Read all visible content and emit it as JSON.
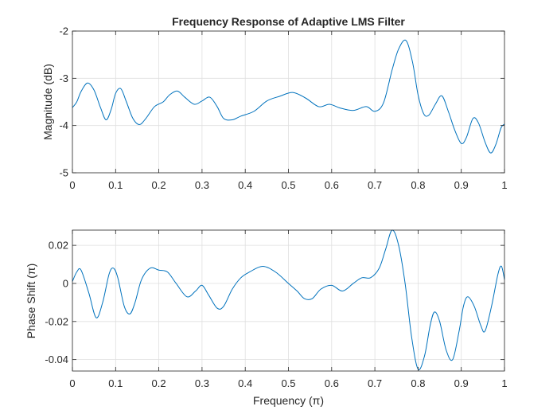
{
  "chart_data": [
    {
      "type": "line",
      "title": "Frequency Response of Adaptive LMS Filter",
      "xlabel": "",
      "ylabel": "Magnitude (dB)",
      "xlim": [
        0,
        1
      ],
      "ylim": [
        -5,
        -2
      ],
      "xticks": [
        "0",
        "0.1",
        "0.2",
        "0.3",
        "0.4",
        "0.5",
        "0.6",
        "0.7",
        "0.8",
        "0.9",
        "1"
      ],
      "yticks": [
        "-2",
        "-3",
        "-4",
        "-5"
      ],
      "grid": true,
      "line_color": "#0072bd",
      "series": [
        {
          "x": [
            0,
            0.01,
            0.02,
            0.035,
            0.05,
            0.065,
            0.078,
            0.09,
            0.1,
            0.112,
            0.125,
            0.14,
            0.155,
            0.17,
            0.19,
            0.21,
            0.225,
            0.243,
            0.26,
            0.282,
            0.3,
            0.318,
            0.335,
            0.35,
            0.37,
            0.39,
            0.42,
            0.45,
            0.48,
            0.51,
            0.54,
            0.57,
            0.595,
            0.62,
            0.65,
            0.68,
            0.7,
            0.72,
            0.74,
            0.755,
            0.772,
            0.787,
            0.8,
            0.813,
            0.825,
            0.84,
            0.855,
            0.87,
            0.885,
            0.9,
            0.912,
            0.927,
            0.94,
            0.955,
            0.968,
            0.98,
            0.992,
            1
          ],
          "values": [
            -3.62,
            -3.5,
            -3.28,
            -3.1,
            -3.25,
            -3.62,
            -3.88,
            -3.65,
            -3.32,
            -3.22,
            -3.5,
            -3.85,
            -3.98,
            -3.85,
            -3.6,
            -3.5,
            -3.35,
            -3.27,
            -3.4,
            -3.55,
            -3.48,
            -3.4,
            -3.6,
            -3.85,
            -3.88,
            -3.8,
            -3.7,
            -3.48,
            -3.38,
            -3.3,
            -3.42,
            -3.6,
            -3.55,
            -3.63,
            -3.68,
            -3.6,
            -3.7,
            -3.52,
            -2.82,
            -2.38,
            -2.2,
            -2.65,
            -3.35,
            -3.75,
            -3.78,
            -3.55,
            -3.37,
            -3.7,
            -4.1,
            -4.38,
            -4.25,
            -3.85,
            -3.95,
            -4.35,
            -4.58,
            -4.4,
            -4.05,
            -3.97
          ]
        }
      ]
    },
    {
      "type": "line",
      "title": "",
      "xlabel": "Frequency (π)",
      "ylabel": "Phase Shift (π)",
      "xlim": [
        0,
        1
      ],
      "ylim": [
        -0.046,
        0.028
      ],
      "xticks": [
        "0",
        "0.1",
        "0.2",
        "0.3",
        "0.4",
        "0.5",
        "0.6",
        "0.7",
        "0.8",
        "0.9",
        "1"
      ],
      "yticks": [
        "0.02",
        "0",
        "-0.02",
        "-0.04"
      ],
      "grid": true,
      "line_color": "#0072bd",
      "series": [
        {
          "x": [
            0,
            0.01,
            0.02,
            0.038,
            0.055,
            0.07,
            0.085,
            0.095,
            0.105,
            0.12,
            0.133,
            0.145,
            0.16,
            0.18,
            0.2,
            0.22,
            0.24,
            0.265,
            0.285,
            0.3,
            0.315,
            0.335,
            0.35,
            0.37,
            0.39,
            0.41,
            0.44,
            0.47,
            0.5,
            0.52,
            0.537,
            0.555,
            0.575,
            0.6,
            0.625,
            0.65,
            0.67,
            0.69,
            0.71,
            0.725,
            0.74,
            0.755,
            0.77,
            0.785,
            0.8,
            0.815,
            0.828,
            0.838,
            0.85,
            0.865,
            0.88,
            0.895,
            0.905,
            0.915,
            0.93,
            0.945,
            0.955,
            0.97,
            0.985,
            0.993,
            1
          ],
          "values": [
            0.001,
            0.006,
            0.007,
            -0.005,
            -0.018,
            -0.01,
            0.005,
            0.008,
            0.003,
            -0.012,
            -0.016,
            -0.01,
            0.002,
            0.008,
            0.007,
            0.006,
            0.0,
            -0.007,
            -0.004,
            -0.001,
            -0.006,
            -0.013,
            -0.012,
            -0.003,
            0.003,
            0.006,
            0.009,
            0.006,
            0.0,
            -0.004,
            -0.008,
            -0.008,
            -0.003,
            -0.001,
            -0.004,
            0.0,
            0.003,
            0.003,
            0.008,
            0.018,
            0.028,
            0.02,
            0.0,
            -0.028,
            -0.045,
            -0.038,
            -0.022,
            -0.015,
            -0.02,
            -0.035,
            -0.04,
            -0.025,
            -0.012,
            -0.007,
            -0.012,
            -0.022,
            -0.025,
            -0.012,
            0.005,
            0.009,
            0.002
          ]
        }
      ]
    }
  ]
}
